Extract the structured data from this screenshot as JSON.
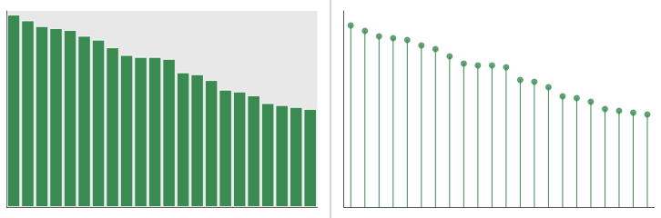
{
  "chart_data": [
    {
      "type": "bar",
      "categories": [
        null,
        null,
        null,
        null,
        null,
        null,
        null,
        null,
        null,
        null,
        null,
        null,
        null,
        null,
        null,
        null,
        null,
        null,
        null,
        null,
        null,
        null
      ],
      "values": [
        100,
        97,
        94,
        93,
        92,
        89,
        87,
        83,
        79,
        78,
        78,
        77,
        70,
        69,
        66,
        61,
        60,
        58,
        54,
        53,
        52,
        51
      ],
      "color": "#3a8a52",
      "ylim": [
        0,
        102
      ],
      "grid": false,
      "tick_labels": false
    },
    {
      "type": "lollipop",
      "categories": [
        null,
        null,
        null,
        null,
        null,
        null,
        null,
        null,
        null,
        null,
        null,
        null,
        null,
        null,
        null,
        null,
        null,
        null,
        null,
        null,
        null,
        null
      ],
      "values": [
        100,
        97,
        94,
        93,
        92,
        89,
        87,
        83,
        79,
        78,
        78,
        77,
        70,
        69,
        66,
        61,
        60,
        58,
        54,
        53,
        52,
        51
      ],
      "color": "#3a8a52",
      "marker": "circle",
      "ylim": [
        0,
        108
      ],
      "grid": false,
      "tick_labels": false
    }
  ]
}
